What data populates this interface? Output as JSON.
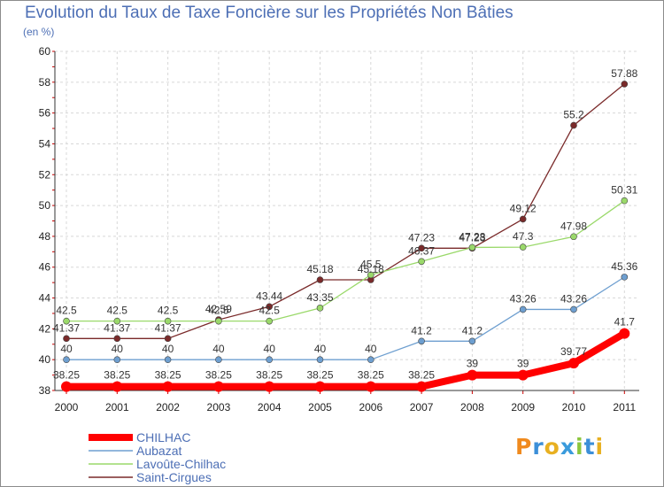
{
  "title": "Evolution du Taux de Taxe Foncière sur les Propriétés Non Bâties",
  "unit": "(en %)",
  "logo": {
    "text": "Proxiti",
    "letters": [
      {
        "ch": "P",
        "color": "#f08a1e"
      },
      {
        "ch": "r",
        "color": "#3c8fd8"
      },
      {
        "ch": "o",
        "color": "#e8b021"
      },
      {
        "ch": "x",
        "color": "#3a9bdc"
      },
      {
        "ch": "i",
        "color": "#8cc63e"
      },
      {
        "ch": "t",
        "color": "#3c8fd8"
      },
      {
        "ch": "i",
        "color": "#e8b021"
      }
    ]
  },
  "chart_data": {
    "type": "line",
    "title": "Evolution du Taux de Taxe Foncière sur les Propriétés Non Bâties",
    "ylabel": "(en %)",
    "xlabel": "",
    "x": [
      "2000",
      "2001",
      "2002",
      "2003",
      "2004",
      "2005",
      "2006",
      "2007",
      "2008",
      "2009",
      "2010",
      "2011"
    ],
    "ylim": [
      38,
      60
    ],
    "yticks": [
      38,
      40,
      42,
      44,
      46,
      48,
      50,
      52,
      54,
      56,
      58,
      60
    ],
    "grid": true,
    "legend": "bottom-left",
    "series": [
      {
        "name": "CHILHAC",
        "color": "#ff0000",
        "values": [
          38.25,
          38.25,
          38.25,
          38.25,
          38.25,
          38.25,
          38.25,
          38.25,
          39,
          39,
          39.77,
          41.7
        ],
        "labels": [
          "38.25",
          "38.25",
          "38.25",
          "38.25",
          "38.25",
          "38.25",
          "38.25",
          "38.25",
          "39",
          "39",
          "39.77",
          "41.7"
        ]
      },
      {
        "name": "Aubazat",
        "color": "#6e9fd0",
        "values": [
          40,
          40,
          40,
          40,
          40,
          40,
          40,
          41.2,
          41.2,
          43.26,
          43.26,
          45.36
        ],
        "labels": [
          "40",
          "40",
          "40",
          "40",
          "40",
          "40",
          "40",
          "41.2",
          "41.2",
          "43.26",
          "43.26",
          "45.36"
        ]
      },
      {
        "name": "Lavoûte-Chilhac",
        "color": "#9ad96a",
        "values": [
          42.5,
          42.5,
          42.5,
          42.5,
          42.5,
          43.35,
          45.5,
          46.37,
          47.28,
          47.3,
          47.98,
          50.31
        ],
        "labels": [
          "42.5",
          "42.5",
          "42.5",
          "42.5",
          "42.5",
          "43.35",
          "45.5",
          "46.37",
          "47.28",
          "47.3",
          "47.98",
          "50.31"
        ]
      },
      {
        "name": "Saint-Cirgues",
        "color": "#7a2a2a",
        "values": [
          41.37,
          41.37,
          41.37,
          42.59,
          43.44,
          45.18,
          45.18,
          47.23,
          47.23,
          49.12,
          55.2,
          57.88
        ],
        "labels": [
          "41.37",
          "41.37",
          "41.37",
          "42.59",
          "43.44",
          "45.18",
          "45.18",
          "47.23",
          "47.23",
          "49.12",
          "55.2",
          "57.88"
        ]
      }
    ]
  }
}
